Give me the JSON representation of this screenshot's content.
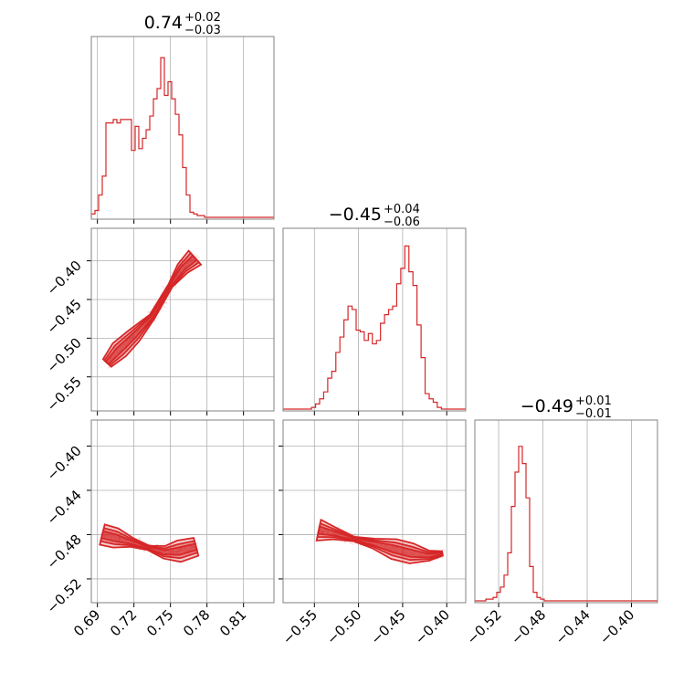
{
  "colors": {
    "accent": "#d62728",
    "frame": "#808080",
    "grid": "#b0b0b0"
  },
  "titles": [
    {
      "value": "0.74",
      "plus": "+0.02",
      "minus": "−0.03"
    },
    {
      "value": "−0.45",
      "plus": "+0.04",
      "minus": "−0.06"
    },
    {
      "value": "−0.49",
      "plus": "+0.01",
      "minus": "−0.01"
    }
  ],
  "chart_data": {
    "type": "corner",
    "grid": true,
    "parameters": [
      {
        "range": [
          0.685,
          0.835
        ],
        "ticks": [
          0.69,
          0.72,
          0.75,
          0.78,
          0.81
        ],
        "tick_labels": [
          "0.69",
          "0.72",
          "0.75",
          "0.78",
          "0.81"
        ],
        "histogram": {
          "edges_start": 0.685,
          "bin_width": 0.003,
          "counts": [
            0.02,
            0.04,
            0.13,
            0.24,
            0.55,
            0.55,
            0.57,
            0.55,
            0.57,
            0.57,
            0.57,
            0.39,
            0.53,
            0.4,
            0.46,
            0.51,
            0.59,
            0.69,
            0.75,
            0.93,
            0.71,
            0.79,
            0.69,
            0.6,
            0.48,
            0.29,
            0.13,
            0.03,
            0.02,
            0.01,
            0.01,
            0,
            0,
            0,
            0,
            0,
            0,
            0,
            0,
            0,
            0,
            0,
            0,
            0,
            0,
            0,
            0,
            0,
            0,
            0
          ]
        }
      },
      {
        "range": [
          -0.5855,
          -0.3785
        ],
        "ticks": [
          -0.55,
          -0.5,
          -0.45,
          -0.4
        ],
        "tick_labels": [
          "−0.55",
          "−0.50",
          "−0.45",
          "−0.40"
        ],
        "y_range": [
          -0.594,
          -0.358
        ],
        "y_ticks": [
          -0.55,
          -0.5,
          -0.45,
          -0.4
        ],
        "y_tick_labels": [
          "−0.55",
          "−0.50",
          "−0.45",
          "−0.40"
        ],
        "histogram": {
          "edges_start": -0.5855,
          "bin_width": 0.0046,
          "counts": [
            0,
            0,
            0,
            0,
            0,
            0,
            0,
            0.01,
            0.03,
            0.06,
            0.1,
            0.18,
            0.22,
            0.33,
            0.42,
            0.52,
            0.6,
            0.58,
            0.46,
            0.45,
            0.4,
            0.44,
            0.38,
            0.4,
            0.5,
            0.55,
            0.58,
            0.6,
            0.73,
            0.82,
            0.95,
            0.8,
            0.72,
            0.49,
            0.3,
            0.09,
            0.06,
            0.04,
            0.01,
            0,
            0,
            0,
            0,
            0,
            0
          ]
        }
      },
      {
        "range": [
          -0.5415,
          -0.3765
        ],
        "ticks": [
          -0.52,
          -0.48,
          -0.44,
          -0.4
        ],
        "tick_labels": [
          "−0.52",
          "−0.48",
          "−0.44",
          "−0.40"
        ],
        "y_range": [
          -0.5415,
          -0.3765
        ],
        "y_ticks": [
          -0.4,
          -0.44,
          -0.48,
          -0.52
        ],
        "y_tick_labels": [
          "−0.40",
          "−0.44",
          "−0.48",
          "−0.52"
        ],
        "histogram": {
          "edges_start": -0.5415,
          "bin_width": 0.0033,
          "counts": [
            0,
            0,
            0,
            0.01,
            0.01,
            0.02,
            0.05,
            0.08,
            0.15,
            0.28,
            0.55,
            0.75,
            0.9,
            0.8,
            0.6,
            0.2,
            0.05,
            0.02,
            0.01,
            0,
            0,
            0,
            0,
            0,
            0,
            0,
            0,
            0,
            0,
            0,
            0,
            0,
            0,
            0,
            0,
            0,
            0,
            0,
            0,
            0,
            0,
            0,
            0,
            0,
            0,
            0,
            0,
            0,
            0,
            0
          ]
        }
      }
    ],
    "pairs": [
      {
        "x_param": 0,
        "y_param": 1,
        "ridge": [
          [
            0.698,
            -0.532
          ],
          [
            0.708,
            -0.515
          ],
          [
            0.72,
            -0.497
          ],
          [
            0.735,
            -0.472
          ],
          [
            0.75,
            -0.432
          ],
          [
            0.76,
            -0.41
          ],
          [
            0.77,
            -0.396
          ]
        ],
        "half_widths": [
          0.004,
          0.008,
          0.012
        ]
      },
      {
        "x_param": 0,
        "y_param": 2,
        "ridge": [
          [
            0.694,
            -0.48
          ],
          [
            0.705,
            -0.483
          ],
          [
            0.718,
            -0.487
          ],
          [
            0.732,
            -0.492
          ],
          [
            0.745,
            -0.496
          ],
          [
            0.757,
            -0.495
          ],
          [
            0.771,
            -0.491
          ]
        ],
        "half_widths": [
          0.0035,
          0.0065,
          0.01
        ]
      },
      {
        "x_param": 1,
        "y_param": 2,
        "ridge": [
          [
            -0.545,
            -0.476
          ],
          [
            -0.527,
            -0.479
          ],
          [
            -0.505,
            -0.484
          ],
          [
            -0.483,
            -0.488
          ],
          [
            -0.46,
            -0.493
          ],
          [
            -0.44,
            -0.497
          ],
          [
            -0.42,
            -0.499
          ],
          [
            -0.405,
            -0.497
          ]
        ],
        "half_widths": [
          0.0035,
          0.0065,
          0.01
        ]
      }
    ]
  }
}
